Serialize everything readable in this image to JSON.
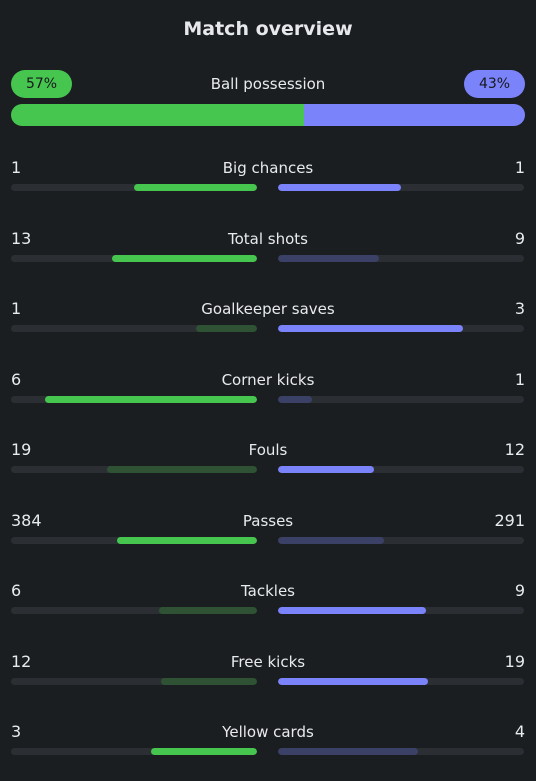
{
  "title": "Match overview",
  "colors": {
    "home": "#46c54f",
    "away": "#7b83fb",
    "home_dim": "#2f5234",
    "away_dim": "#3b4067",
    "track": "#2b2f33",
    "background": "#1b1e21"
  },
  "possession": {
    "label": "Ball possession",
    "home_text": "57%",
    "away_text": "43%",
    "home": 57,
    "away": 43
  },
  "stats": [
    {
      "name": "Big chances",
      "home": "1",
      "away": "1",
      "home_fraction": 0.5,
      "away_fraction": 0.5,
      "home_leading": true,
      "away_leading": true
    },
    {
      "name": "Total shots",
      "home": "13",
      "away": "9",
      "home_fraction": 0.59,
      "away_fraction": 0.41,
      "home_leading": true,
      "away_leading": false
    },
    {
      "name": "Goalkeeper saves",
      "home": "1",
      "away": "3",
      "home_fraction": 0.25,
      "away_fraction": 0.75,
      "home_leading": false,
      "away_leading": true
    },
    {
      "name": "Corner kicks",
      "home": "6",
      "away": "1",
      "home_fraction": 0.86,
      "away_fraction": 0.14,
      "home_leading": true,
      "away_leading": false
    },
    {
      "name": "Fouls",
      "home": "19",
      "away": "12",
      "home_fraction": 0.61,
      "away_fraction": 0.39,
      "home_leading": false,
      "away_leading": true
    },
    {
      "name": "Passes",
      "home": "384",
      "away": "291",
      "home_fraction": 0.57,
      "away_fraction": 0.43,
      "home_leading": true,
      "away_leading": false
    },
    {
      "name": "Tackles",
      "home": "6",
      "away": "9",
      "home_fraction": 0.4,
      "away_fraction": 0.6,
      "home_leading": false,
      "away_leading": true
    },
    {
      "name": "Free kicks",
      "home": "12",
      "away": "19",
      "home_fraction": 0.39,
      "away_fraction": 0.61,
      "home_leading": false,
      "away_leading": true
    },
    {
      "name": "Yellow cards",
      "home": "3",
      "away": "4",
      "home_fraction": 0.43,
      "away_fraction": 0.57,
      "home_leading": true,
      "away_leading": false
    }
  ]
}
